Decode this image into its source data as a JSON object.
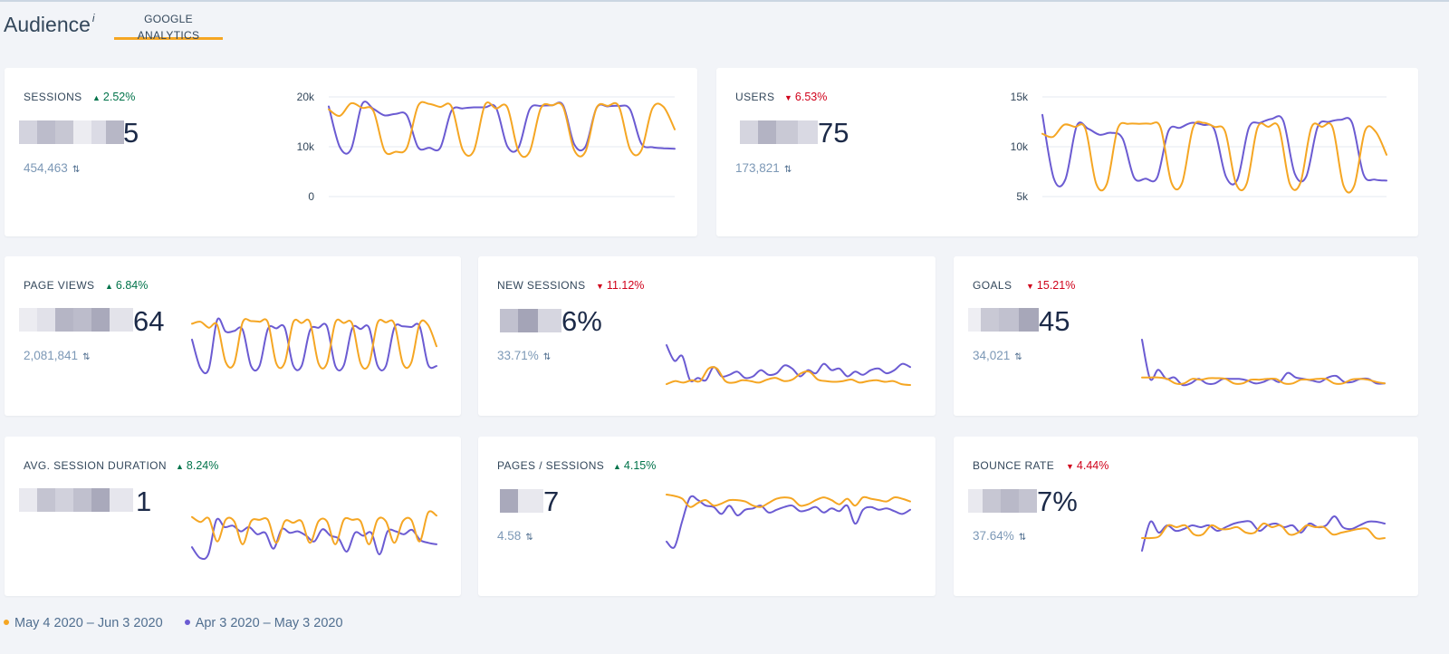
{
  "header": {
    "title": "Audience",
    "title_sup": "i",
    "tab_label": "GOOGLE ANALYTICS"
  },
  "colors": {
    "current": "#f5a623",
    "previous": "#6b5bd2",
    "up": "#00734a",
    "down": "#d0021b"
  },
  "cards": {
    "sessions": {
      "label": "SESSIONS",
      "change": "2.52%",
      "change_dir": "up",
      "value_visible": "5",
      "previous": "454,463"
    },
    "users": {
      "label": "USERS",
      "change": "6.53%",
      "change_dir": "down",
      "value_visible": "75",
      "previous": "173,821"
    },
    "page_views": {
      "label": "PAGE VIEWS",
      "change": "6.84%",
      "change_dir": "up",
      "value_visible": "64",
      "previous": "2,081,841"
    },
    "new_sessions": {
      "label": "NEW SESSIONS",
      "change": "11.12%",
      "change_dir": "down",
      "value_visible": "6%",
      "previous": "33.71%"
    },
    "goals": {
      "label": "GOALS",
      "change": "15.21%",
      "change_dir": "down",
      "value_visible": "45",
      "previous": "34,021"
    },
    "avg_session_duration": {
      "label": "AVG. SESSION DURATION",
      "change": "8.24%",
      "change_dir": "up",
      "value_visible": "1",
      "previous": ""
    },
    "pages_sessions": {
      "label": "PAGES / SESSIONS",
      "change": "4.15%",
      "change_dir": "up",
      "value_visible": "7",
      "previous": "4.58"
    },
    "bounce_rate": {
      "label": "BOUNCE RATE",
      "change": "4.44%",
      "change_dir": "down",
      "value_visible": "7%",
      "previous": "37.64%"
    }
  },
  "legend": {
    "current": "May 4 2020 – Jun 3 2020",
    "previous": "Apr 3 2020 – May 3 2020"
  },
  "chart_data": [
    {
      "type": "line",
      "id": "sessions",
      "title": "SESSIONS",
      "ylim": [
        0,
        20000
      ],
      "yticks": [
        "20k",
        "10k",
        "0"
      ],
      "series": [
        {
          "name": "May 4 2020 – Jun 3 2020",
          "values": [
            17500,
            16200,
            18700,
            17800,
            17200,
            9200,
            9000,
            9800,
            18200,
            18600,
            18000,
            18100,
            9400,
            9200,
            18400,
            17700,
            17900,
            9100,
            9000,
            17700,
            18300,
            18000,
            9300,
            9000,
            17800,
            18200,
            18100,
            9500,
            9200,
            17700,
            18000,
            13500
          ]
        },
        {
          "name": "Apr 3 2020 – May 3 2020",
          "values": [
            18100,
            9900,
            9500,
            18600,
            17600,
            16300,
            16600,
            16300,
            9900,
            9800,
            9800,
            17200,
            17700,
            17900,
            17900,
            17800,
            10100,
            9800,
            17500,
            18200,
            18300,
            18300,
            10500,
            10000,
            17800,
            18100,
            18200,
            17500,
            10700,
            9900,
            9700,
            9600
          ]
        }
      ]
    },
    {
      "type": "line",
      "id": "users",
      "title": "USERS",
      "ylim": [
        5000,
        15000
      ],
      "yticks": [
        "15k",
        "10k",
        "5k"
      ],
      "series": [
        {
          "name": "May 4 2020 – Jun 3 2020",
          "values": [
            11300,
            11000,
            12200,
            12000,
            11800,
            6300,
            6300,
            11800,
            12300,
            12300,
            12300,
            11900,
            6400,
            6400,
            11900,
            12400,
            12000,
            11500,
            6300,
            6300,
            11900,
            12000,
            11900,
            6300,
            6400,
            11900,
            12000,
            11900,
            6100,
            6100,
            11600,
            11500,
            9200
          ]
        },
        {
          "name": "Apr 3 2020 – May 3 2020",
          "values": [
            13200,
            6800,
            6700,
            12100,
            11800,
            11200,
            11400,
            10800,
            6900,
            6800,
            6900,
            11600,
            11900,
            12400,
            12200,
            11700,
            7000,
            6700,
            11900,
            12400,
            12800,
            12600,
            7300,
            7000,
            12000,
            12500,
            12700,
            12400,
            7200,
            6700,
            6600
          ]
        }
      ]
    },
    {
      "type": "line",
      "id": "page_views",
      "title": "PAGE VIEWS",
      "series": [
        {
          "name": "May 4 2020 – Jun 3 2020",
          "values": [
            72,
            75,
            66,
            70,
            14,
            12,
            74,
            76,
            75,
            74,
            12,
            13,
            74,
            73,
            74,
            12,
            12,
            74,
            73,
            72,
            12,
            11,
            73,
            74,
            72,
            12,
            13,
            72,
            70,
            38
          ]
        },
        {
          "name": "Apr 3 2020 – May 3 2020",
          "values": [
            48,
            5,
            4,
            78,
            60,
            61,
            63,
            8,
            8,
            64,
            65,
            66,
            9,
            8,
            62,
            66,
            68,
            8,
            9,
            65,
            64,
            66,
            9,
            8,
            66,
            68,
            67,
            68,
            10,
            8
          ]
        }
      ]
    },
    {
      "type": "line",
      "id": "new_sessions",
      "title": "NEW SESSIONS",
      "series": [
        {
          "name": "May 4 2020 – Jun 3 2020",
          "values": [
            20,
            24,
            22,
            25,
            24,
            40,
            40,
            24,
            22,
            25,
            24,
            22,
            26,
            28,
            24,
            26,
            34,
            36,
            26,
            24,
            23,
            24,
            26,
            22,
            24,
            25,
            23,
            24,
            20,
            19
          ]
        },
        {
          "name": "Apr 3 2020 – May 3 2020",
          "values": [
            70,
            50,
            56,
            25,
            28,
            25,
            42,
            30,
            32,
            36,
            28,
            30,
            38,
            32,
            34,
            44,
            40,
            30,
            38,
            34,
            46,
            38,
            40,
            30,
            36,
            32,
            38,
            40,
            34,
            38,
            46,
            42
          ]
        }
      ]
    },
    {
      "type": "line",
      "id": "goals",
      "title": "GOALS",
      "series": [
        {
          "name": "May 4 2020 – Jun 3 2020",
          "values": [
            30,
            30,
            30,
            28,
            22,
            22,
            28,
            27,
            29,
            29,
            28,
            22,
            22,
            27,
            27,
            28,
            28,
            22,
            22,
            27,
            27,
            28,
            28,
            22,
            22,
            27,
            28,
            27,
            24,
            22
          ]
        },
        {
          "name": "Apr 3 2020 – May 3 2020",
          "values": [
            80,
            28,
            40,
            28,
            30,
            20,
            22,
            28,
            22,
            22,
            28,
            28,
            28,
            26,
            22,
            24,
            28,
            24,
            36,
            30,
            28,
            26,
            24,
            30,
            32,
            24,
            24,
            28,
            28,
            22,
            22
          ]
        }
      ]
    },
    {
      "type": "line",
      "id": "avg_session_duration",
      "title": "AVG. SESSION DURATION",
      "series": [
        {
          "name": "May 4 2020 – Jun 3 2020",
          "values": [
            62,
            55,
            60,
            28,
            58,
            56,
            24,
            56,
            58,
            58,
            26,
            56,
            54,
            56,
            26,
            56,
            56,
            24,
            58,
            58,
            56,
            24,
            58,
            56,
            26,
            56,
            58,
            28,
            68,
            64
          ]
        },
        {
          "name": "Apr 3 2020 – May 3 2020",
          "values": [
            20,
            5,
            10,
            58,
            48,
            50,
            42,
            48,
            38,
            40,
            18,
            45,
            40,
            42,
            36,
            28,
            45,
            36,
            32,
            14,
            40,
            36,
            40,
            10,
            42,
            42,
            38,
            44,
            30,
            26,
            24
          ]
        }
      ]
    },
    {
      "type": "line",
      "id": "pages_sessions",
      "title": "PAGES / SESSIONS",
      "series": [
        {
          "name": "May 4 2020 – Jun 3 2020",
          "values": [
            78,
            76,
            72,
            60,
            66,
            70,
            62,
            65,
            70,
            70,
            68,
            62,
            60,
            66,
            72,
            74,
            72,
            62,
            64,
            70,
            74,
            70,
            64,
            72,
            62,
            74,
            72,
            70,
            68,
            74,
            72,
            68
          ]
        },
        {
          "name": "Apr 3 2020 – May 3 2020",
          "values": [
            10,
            2,
            40,
            74,
            70,
            62,
            60,
            50,
            62,
            48,
            56,
            58,
            62,
            52,
            56,
            60,
            62,
            54,
            56,
            60,
            52,
            58,
            54,
            62,
            36,
            56,
            60,
            56,
            58,
            54,
            50,
            56
          ]
        }
      ]
    },
    {
      "type": "line",
      "id": "bounce_rate",
      "title": "BOUNCE RATE",
      "series": [
        {
          "name": "May 4 2020 – Jun 3 2020",
          "values": [
            22,
            22,
            24,
            36,
            34,
            36,
            26,
            26,
            36,
            32,
            32,
            34,
            28,
            28,
            38,
            34,
            36,
            26,
            28,
            36,
            34,
            34,
            26,
            28,
            30,
            32,
            32,
            22,
            22
          ]
        },
        {
          "name": "Apr 3 2020 – May 3 2020",
          "values": [
            8,
            40,
            28,
            36,
            30,
            32,
            36,
            34,
            36,
            30,
            34,
            38,
            40,
            40,
            30,
            36,
            38,
            34,
            36,
            28,
            38,
            34,
            36,
            46,
            34,
            32,
            36,
            40,
            40,
            38
          ]
        }
      ]
    }
  ]
}
